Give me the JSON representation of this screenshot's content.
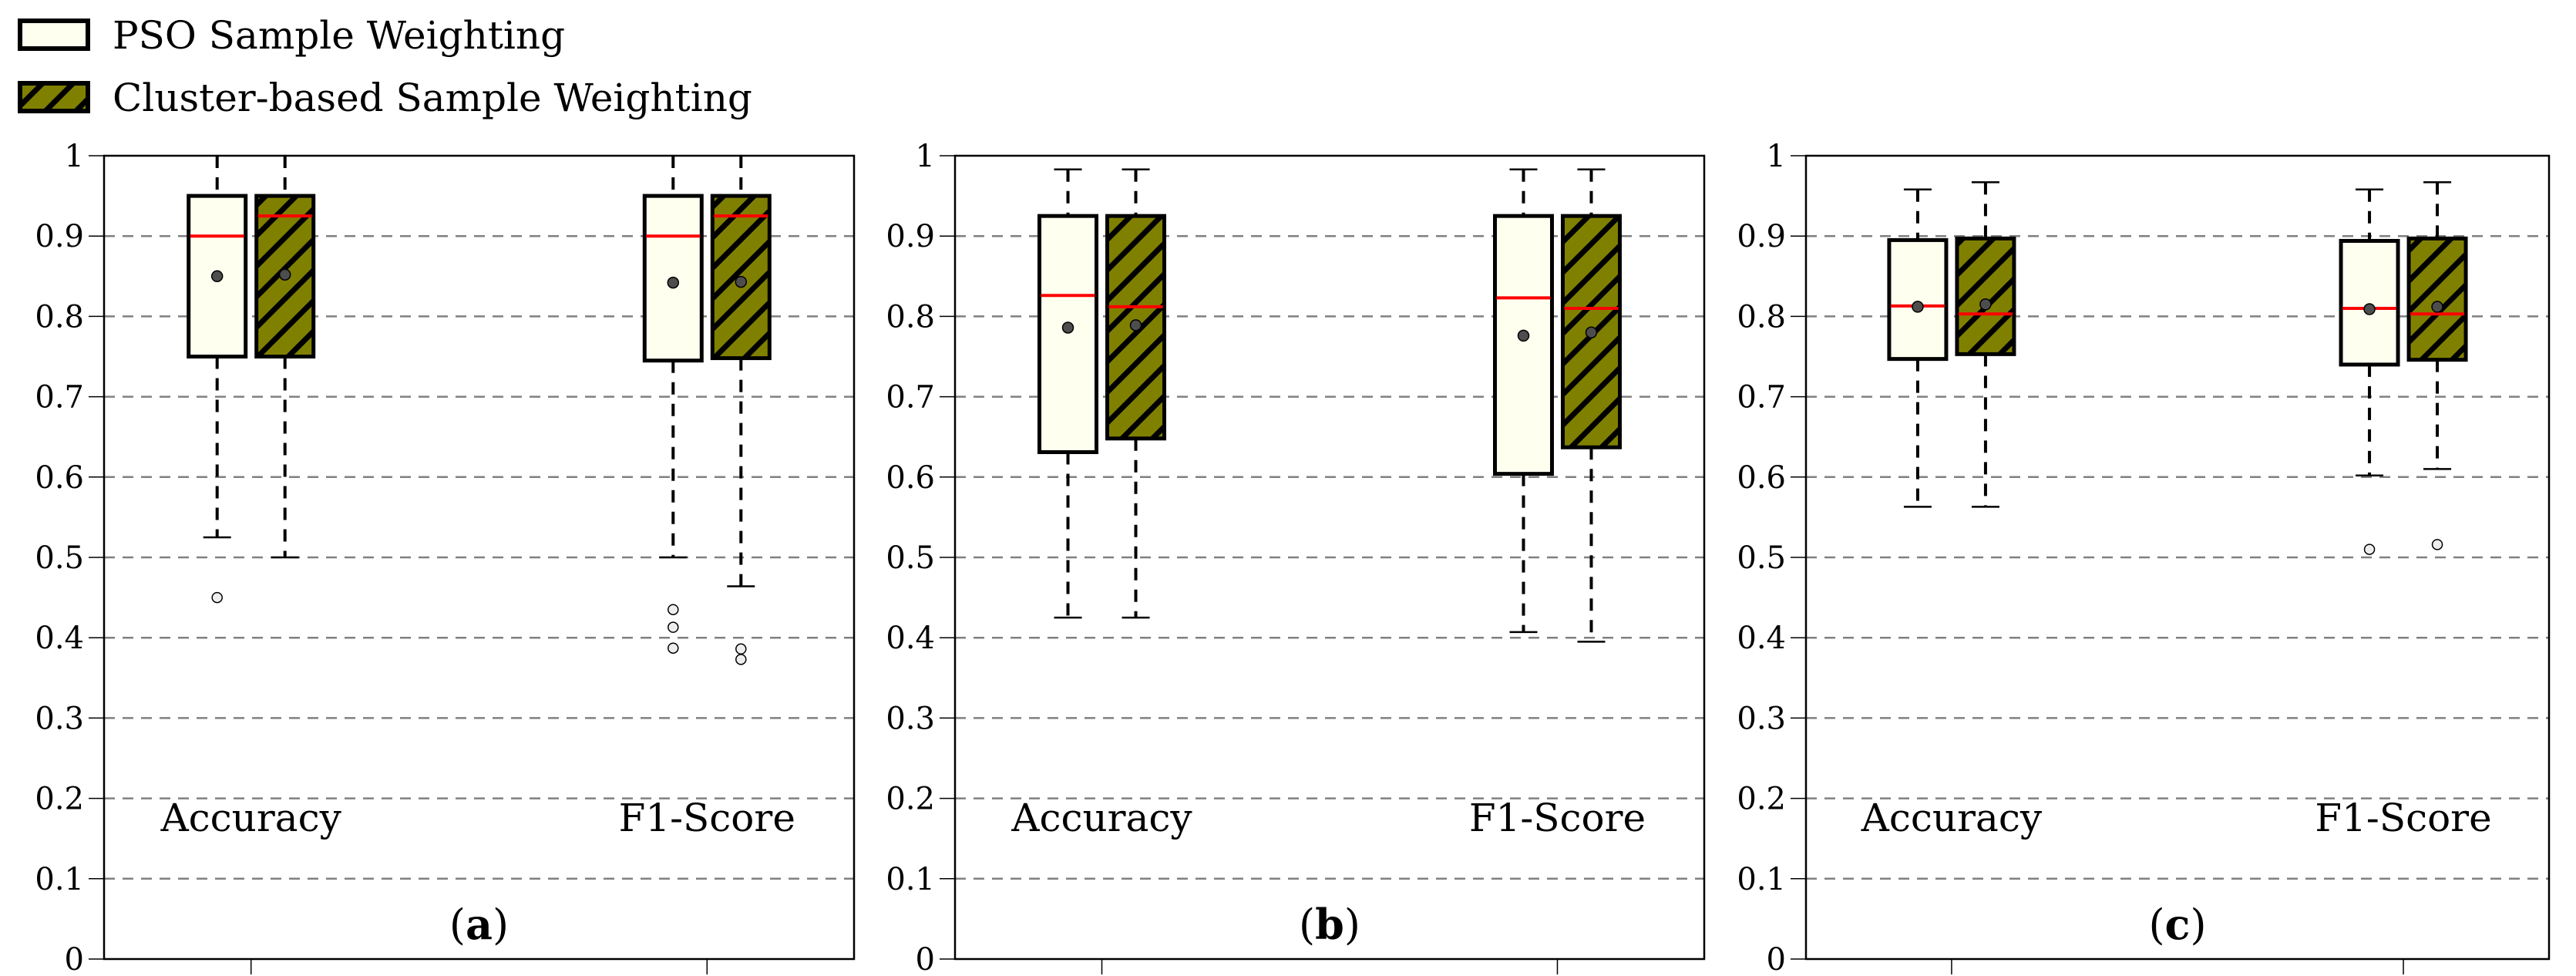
{
  "colors": {
    "pso_fill": "#fffff0",
    "cluster_fill": "#808000",
    "hatch": "#000000",
    "median": "#ff0000",
    "mean": "#4d4d4d",
    "grid": "#808080"
  },
  "legend": [
    {
      "label": "PSO Sample Weighting",
      "pattern": "plain"
    },
    {
      "label": "Cluster-based Sample Weighting",
      "pattern": "hatch"
    }
  ],
  "chart_data": [
    {
      "type": "box",
      "panel_label": "a",
      "categories": [
        "Accuracy",
        "F1-Score"
      ],
      "ylim": [
        0,
        1
      ],
      "yticks": [
        "0",
        "0.1",
        "0.2",
        "0.3",
        "0.4",
        "0.5",
        "0.6",
        "0.7",
        "0.8",
        "0.9",
        "1"
      ],
      "grid": true,
      "series": [
        {
          "name": "PSO Sample Weighting",
          "boxes": [
            {
              "whislo": 0.525,
              "q1": 0.75,
              "med": 0.9,
              "mean": 0.85,
              "q3": 0.95,
              "whishi": 1.0,
              "fliers": [
                0.45
              ]
            },
            {
              "whislo": 0.5,
              "q1": 0.745,
              "med": 0.9,
              "mean": 0.842,
              "q3": 0.95,
              "whishi": 1.0,
              "fliers": [
                0.435,
                0.413,
                0.387
              ]
            }
          ]
        },
        {
          "name": "Cluster-based Sample Weighting",
          "boxes": [
            {
              "whislo": 0.5,
              "q1": 0.75,
              "med": 0.925,
              "mean": 0.852,
              "q3": 0.95,
              "whishi": 1.0,
              "fliers": []
            },
            {
              "whislo": 0.464,
              "q1": 0.748,
              "med": 0.925,
              "mean": 0.843,
              "q3": 0.95,
              "whishi": 1.0,
              "fliers": [
                0.386,
                0.373
              ]
            }
          ]
        }
      ]
    },
    {
      "type": "box",
      "panel_label": "b",
      "categories": [
        "Accuracy",
        "F1-Score"
      ],
      "ylim": [
        0,
        1
      ],
      "yticks": [
        "0",
        "0.1",
        "0.2",
        "0.3",
        "0.4",
        "0.5",
        "0.6",
        "0.7",
        "0.8",
        "0.9",
        "1"
      ],
      "grid": true,
      "series": [
        {
          "name": "PSO Sample Weighting",
          "boxes": [
            {
              "whislo": 0.425,
              "q1": 0.631,
              "med": 0.826,
              "mean": 0.786,
              "q3": 0.925,
              "whishi": 0.983,
              "fliers": []
            },
            {
              "whislo": 0.407,
              "q1": 0.604,
              "med": 0.823,
              "mean": 0.776,
              "q3": 0.925,
              "whishi": 0.983,
              "fliers": []
            }
          ]
        },
        {
          "name": "Cluster-based Sample Weighting",
          "boxes": [
            {
              "whislo": 0.425,
              "q1": 0.648,
              "med": 0.812,
              "mean": 0.789,
              "q3": 0.925,
              "whishi": 0.983,
              "fliers": []
            },
            {
              "whislo": 0.395,
              "q1": 0.637,
              "med": 0.81,
              "mean": 0.78,
              "q3": 0.925,
              "whishi": 0.983,
              "fliers": []
            }
          ]
        }
      ]
    },
    {
      "type": "box",
      "panel_label": "c",
      "categories": [
        "Accuracy",
        "F1-Score"
      ],
      "ylim": [
        0,
        1
      ],
      "yticks": [
        "0",
        "0.1",
        "0.2",
        "0.3",
        "0.4",
        "0.5",
        "0.6",
        "0.7",
        "0.8",
        "0.9",
        "1"
      ],
      "grid": true,
      "series": [
        {
          "name": "PSO Sample Weighting",
          "boxes": [
            {
              "whislo": 0.563,
              "q1": 0.747,
              "med": 0.813,
              "mean": 0.812,
              "q3": 0.895,
              "whishi": 0.958,
              "fliers": []
            },
            {
              "whislo": 0.602,
              "q1": 0.74,
              "med": 0.81,
              "mean": 0.809,
              "q3": 0.894,
              "whishi": 0.958,
              "fliers": [
                0.51
              ]
            }
          ]
        },
        {
          "name": "Cluster-based Sample Weighting",
          "boxes": [
            {
              "whislo": 0.563,
              "q1": 0.753,
              "med": 0.803,
              "mean": 0.815,
              "q3": 0.897,
              "whishi": 0.967,
              "fliers": []
            },
            {
              "whislo": 0.61,
              "q1": 0.746,
              "med": 0.803,
              "mean": 0.812,
              "q3": 0.897,
              "whishi": 0.967,
              "fliers": [
                0.516
              ]
            }
          ]
        }
      ]
    }
  ]
}
